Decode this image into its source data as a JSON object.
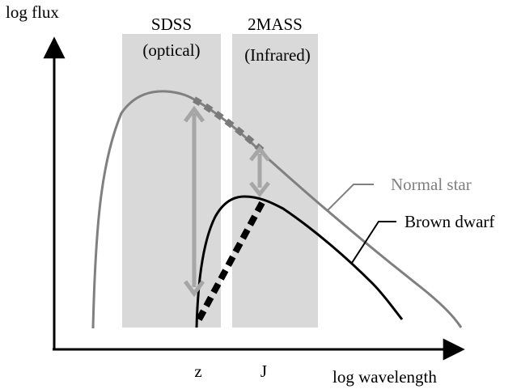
{
  "axes": {
    "y_label": "log flux",
    "x_label": "log wavelength",
    "x_ticks": [
      "z",
      "J"
    ]
  },
  "bands": [
    {
      "name": "SDSS",
      "sub": "(optical)"
    },
    {
      "name": "2MASS",
      "sub": "(Infrared)"
    }
  ],
  "curves": {
    "normal_star": {
      "label": "Normal star",
      "color": "#808080"
    },
    "brown_dwarf": {
      "label": "Brown dwarf",
      "color": "#000000"
    }
  },
  "colors": {
    "band_fill": "#d9d9d9",
    "arrow": "#a6a6a6",
    "axis": "#000000"
  }
}
